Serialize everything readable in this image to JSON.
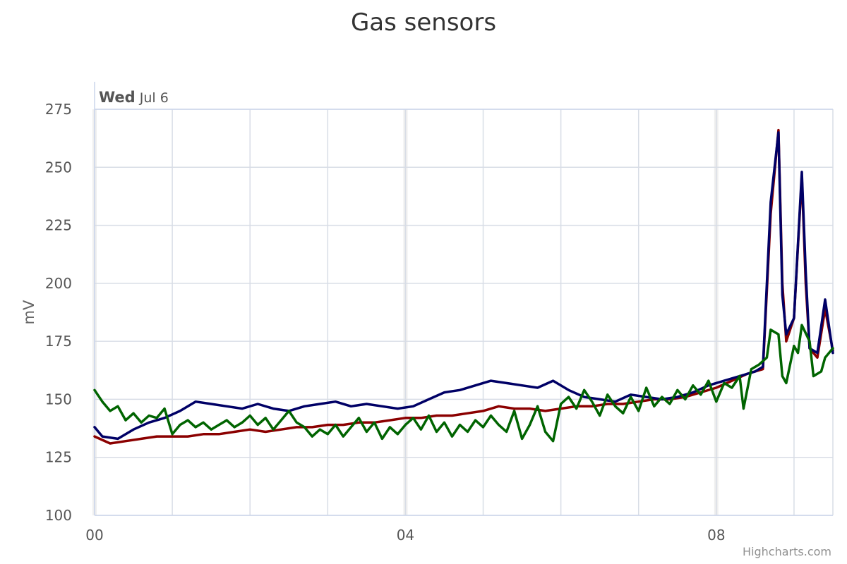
{
  "chart_data": {
    "type": "line",
    "title": "Gas sensors",
    "ylabel": "mV",
    "xlabel": "",
    "ylim": [
      100,
      275
    ],
    "y_ticks": [
      100,
      125,
      150,
      175,
      200,
      225,
      250,
      275
    ],
    "x_axis_type": "time (hours, Wed Jul 6)",
    "xlim": [
      0,
      9.5
    ],
    "x_tick_labels": [
      {
        "x": 0,
        "label": "00"
      },
      {
        "x": 4,
        "label": "04"
      },
      {
        "x": 8,
        "label": "08"
      }
    ],
    "day_label": {
      "bold": "Wed",
      "rest": "Jul 6"
    },
    "grid": true,
    "legend": "none",
    "series": [
      {
        "color": "#8b0000",
        "points": [
          [
            0,
            134
          ],
          [
            0.2,
            131
          ],
          [
            0.4,
            132
          ],
          [
            0.6,
            133
          ],
          [
            0.8,
            134
          ],
          [
            1.0,
            134
          ],
          [
            1.2,
            134
          ],
          [
            1.4,
            135
          ],
          [
            1.6,
            135
          ],
          [
            1.8,
            136
          ],
          [
            2.0,
            137
          ],
          [
            2.2,
            136
          ],
          [
            2.4,
            137
          ],
          [
            2.6,
            138
          ],
          [
            2.8,
            138
          ],
          [
            3.0,
            139
          ],
          [
            3.2,
            139
          ],
          [
            3.4,
            140
          ],
          [
            3.6,
            140
          ],
          [
            3.8,
            141
          ],
          [
            4.0,
            142
          ],
          [
            4.2,
            142
          ],
          [
            4.4,
            143
          ],
          [
            4.6,
            143
          ],
          [
            4.8,
            144
          ],
          [
            5.0,
            145
          ],
          [
            5.2,
            147
          ],
          [
            5.4,
            146
          ],
          [
            5.6,
            146
          ],
          [
            5.8,
            145
          ],
          [
            6.0,
            146
          ],
          [
            6.2,
            147
          ],
          [
            6.4,
            147
          ],
          [
            6.6,
            148
          ],
          [
            6.8,
            148
          ],
          [
            7.0,
            149
          ],
          [
            7.2,
            150
          ],
          [
            7.4,
            150
          ],
          [
            7.6,
            151
          ],
          [
            7.8,
            153
          ],
          [
            8.0,
            155
          ],
          [
            8.2,
            158
          ],
          [
            8.4,
            161
          ],
          [
            8.6,
            163
          ],
          [
            8.7,
            230
          ],
          [
            8.8,
            266
          ],
          [
            8.85,
            200
          ],
          [
            8.9,
            175
          ],
          [
            9.0,
            185
          ],
          [
            9.1,
            246
          ],
          [
            9.15,
            200
          ],
          [
            9.2,
            172
          ],
          [
            9.3,
            168
          ],
          [
            9.4,
            189
          ],
          [
            9.5,
            171
          ]
        ]
      },
      {
        "color": "#000066",
        "points": [
          [
            0,
            138
          ],
          [
            0.1,
            134
          ],
          [
            0.3,
            133
          ],
          [
            0.5,
            137
          ],
          [
            0.7,
            140
          ],
          [
            0.9,
            142
          ],
          [
            1.1,
            145
          ],
          [
            1.3,
            149
          ],
          [
            1.5,
            148
          ],
          [
            1.7,
            147
          ],
          [
            1.9,
            146
          ],
          [
            2.1,
            148
          ],
          [
            2.3,
            146
          ],
          [
            2.5,
            145
          ],
          [
            2.7,
            147
          ],
          [
            2.9,
            148
          ],
          [
            3.1,
            149
          ],
          [
            3.3,
            147
          ],
          [
            3.5,
            148
          ],
          [
            3.7,
            147
          ],
          [
            3.9,
            146
          ],
          [
            4.1,
            147
          ],
          [
            4.3,
            150
          ],
          [
            4.5,
            153
          ],
          [
            4.7,
            154
          ],
          [
            4.9,
            156
          ],
          [
            5.1,
            158
          ],
          [
            5.3,
            157
          ],
          [
            5.5,
            156
          ],
          [
            5.7,
            155
          ],
          [
            5.9,
            158
          ],
          [
            6.1,
            154
          ],
          [
            6.3,
            151
          ],
          [
            6.5,
            150
          ],
          [
            6.7,
            149
          ],
          [
            6.9,
            152
          ],
          [
            7.1,
            151
          ],
          [
            7.3,
            150
          ],
          [
            7.5,
            151
          ],
          [
            7.7,
            153
          ],
          [
            7.9,
            156
          ],
          [
            8.1,
            158
          ],
          [
            8.3,
            160
          ],
          [
            8.5,
            162
          ],
          [
            8.6,
            164
          ],
          [
            8.7,
            235
          ],
          [
            8.8,
            265
          ],
          [
            8.85,
            195
          ],
          [
            8.9,
            178
          ],
          [
            9.0,
            185
          ],
          [
            9.1,
            248
          ],
          [
            9.15,
            205
          ],
          [
            9.2,
            172
          ],
          [
            9.3,
            170
          ],
          [
            9.4,
            193
          ],
          [
            9.5,
            170
          ]
        ]
      },
      {
        "color": "#006400",
        "points": [
          [
            0,
            154
          ],
          [
            0.1,
            149
          ],
          [
            0.2,
            145
          ],
          [
            0.3,
            147
          ],
          [
            0.4,
            141
          ],
          [
            0.5,
            144
          ],
          [
            0.6,
            140
          ],
          [
            0.7,
            143
          ],
          [
            0.8,
            142
          ],
          [
            0.9,
            146
          ],
          [
            1.0,
            135
          ],
          [
            1.1,
            139
          ],
          [
            1.2,
            141
          ],
          [
            1.3,
            138
          ],
          [
            1.4,
            140
          ],
          [
            1.5,
            137
          ],
          [
            1.6,
            139
          ],
          [
            1.7,
            141
          ],
          [
            1.8,
            138
          ],
          [
            1.9,
            140
          ],
          [
            2.0,
            143
          ],
          [
            2.1,
            139
          ],
          [
            2.2,
            142
          ],
          [
            2.3,
            137
          ],
          [
            2.4,
            141
          ],
          [
            2.5,
            145
          ],
          [
            2.6,
            140
          ],
          [
            2.7,
            138
          ],
          [
            2.8,
            134
          ],
          [
            2.9,
            137
          ],
          [
            3.0,
            135
          ],
          [
            3.1,
            139
          ],
          [
            3.2,
            134
          ],
          [
            3.3,
            138
          ],
          [
            3.4,
            142
          ],
          [
            3.5,
            136
          ],
          [
            3.6,
            140
          ],
          [
            3.7,
            133
          ],
          [
            3.8,
            138
          ],
          [
            3.9,
            135
          ],
          [
            4.0,
            139
          ],
          [
            4.1,
            142
          ],
          [
            4.2,
            137
          ],
          [
            4.3,
            143
          ],
          [
            4.4,
            136
          ],
          [
            4.5,
            140
          ],
          [
            4.6,
            134
          ],
          [
            4.7,
            139
          ],
          [
            4.8,
            136
          ],
          [
            4.9,
            141
          ],
          [
            5.0,
            138
          ],
          [
            5.1,
            143
          ],
          [
            5.2,
            139
          ],
          [
            5.3,
            136
          ],
          [
            5.4,
            145
          ],
          [
            5.5,
            133
          ],
          [
            5.6,
            139
          ],
          [
            5.7,
            147
          ],
          [
            5.8,
            136
          ],
          [
            5.9,
            132
          ],
          [
            6.0,
            148
          ],
          [
            6.1,
            151
          ],
          [
            6.2,
            146
          ],
          [
            6.3,
            154
          ],
          [
            6.4,
            149
          ],
          [
            6.5,
            143
          ],
          [
            6.6,
            152
          ],
          [
            6.7,
            147
          ],
          [
            6.8,
            144
          ],
          [
            6.9,
            151
          ],
          [
            7.0,
            145
          ],
          [
            7.1,
            155
          ],
          [
            7.2,
            147
          ],
          [
            7.3,
            151
          ],
          [
            7.4,
            148
          ],
          [
            7.5,
            154
          ],
          [
            7.6,
            150
          ],
          [
            7.7,
            156
          ],
          [
            7.8,
            152
          ],
          [
            7.9,
            158
          ],
          [
            8.0,
            149
          ],
          [
            8.1,
            157
          ],
          [
            8.2,
            155
          ],
          [
            8.3,
            160
          ],
          [
            8.35,
            146
          ],
          [
            8.45,
            163
          ],
          [
            8.55,
            165
          ],
          [
            8.65,
            168
          ],
          [
            8.7,
            180
          ],
          [
            8.8,
            178
          ],
          [
            8.85,
            160
          ],
          [
            8.9,
            157
          ],
          [
            9.0,
            173
          ],
          [
            9.05,
            170
          ],
          [
            9.1,
            182
          ],
          [
            9.2,
            175
          ],
          [
            9.25,
            160
          ],
          [
            9.35,
            162
          ],
          [
            9.4,
            168
          ],
          [
            9.5,
            172
          ]
        ]
      }
    ]
  },
  "credits": "Highcharts.com"
}
